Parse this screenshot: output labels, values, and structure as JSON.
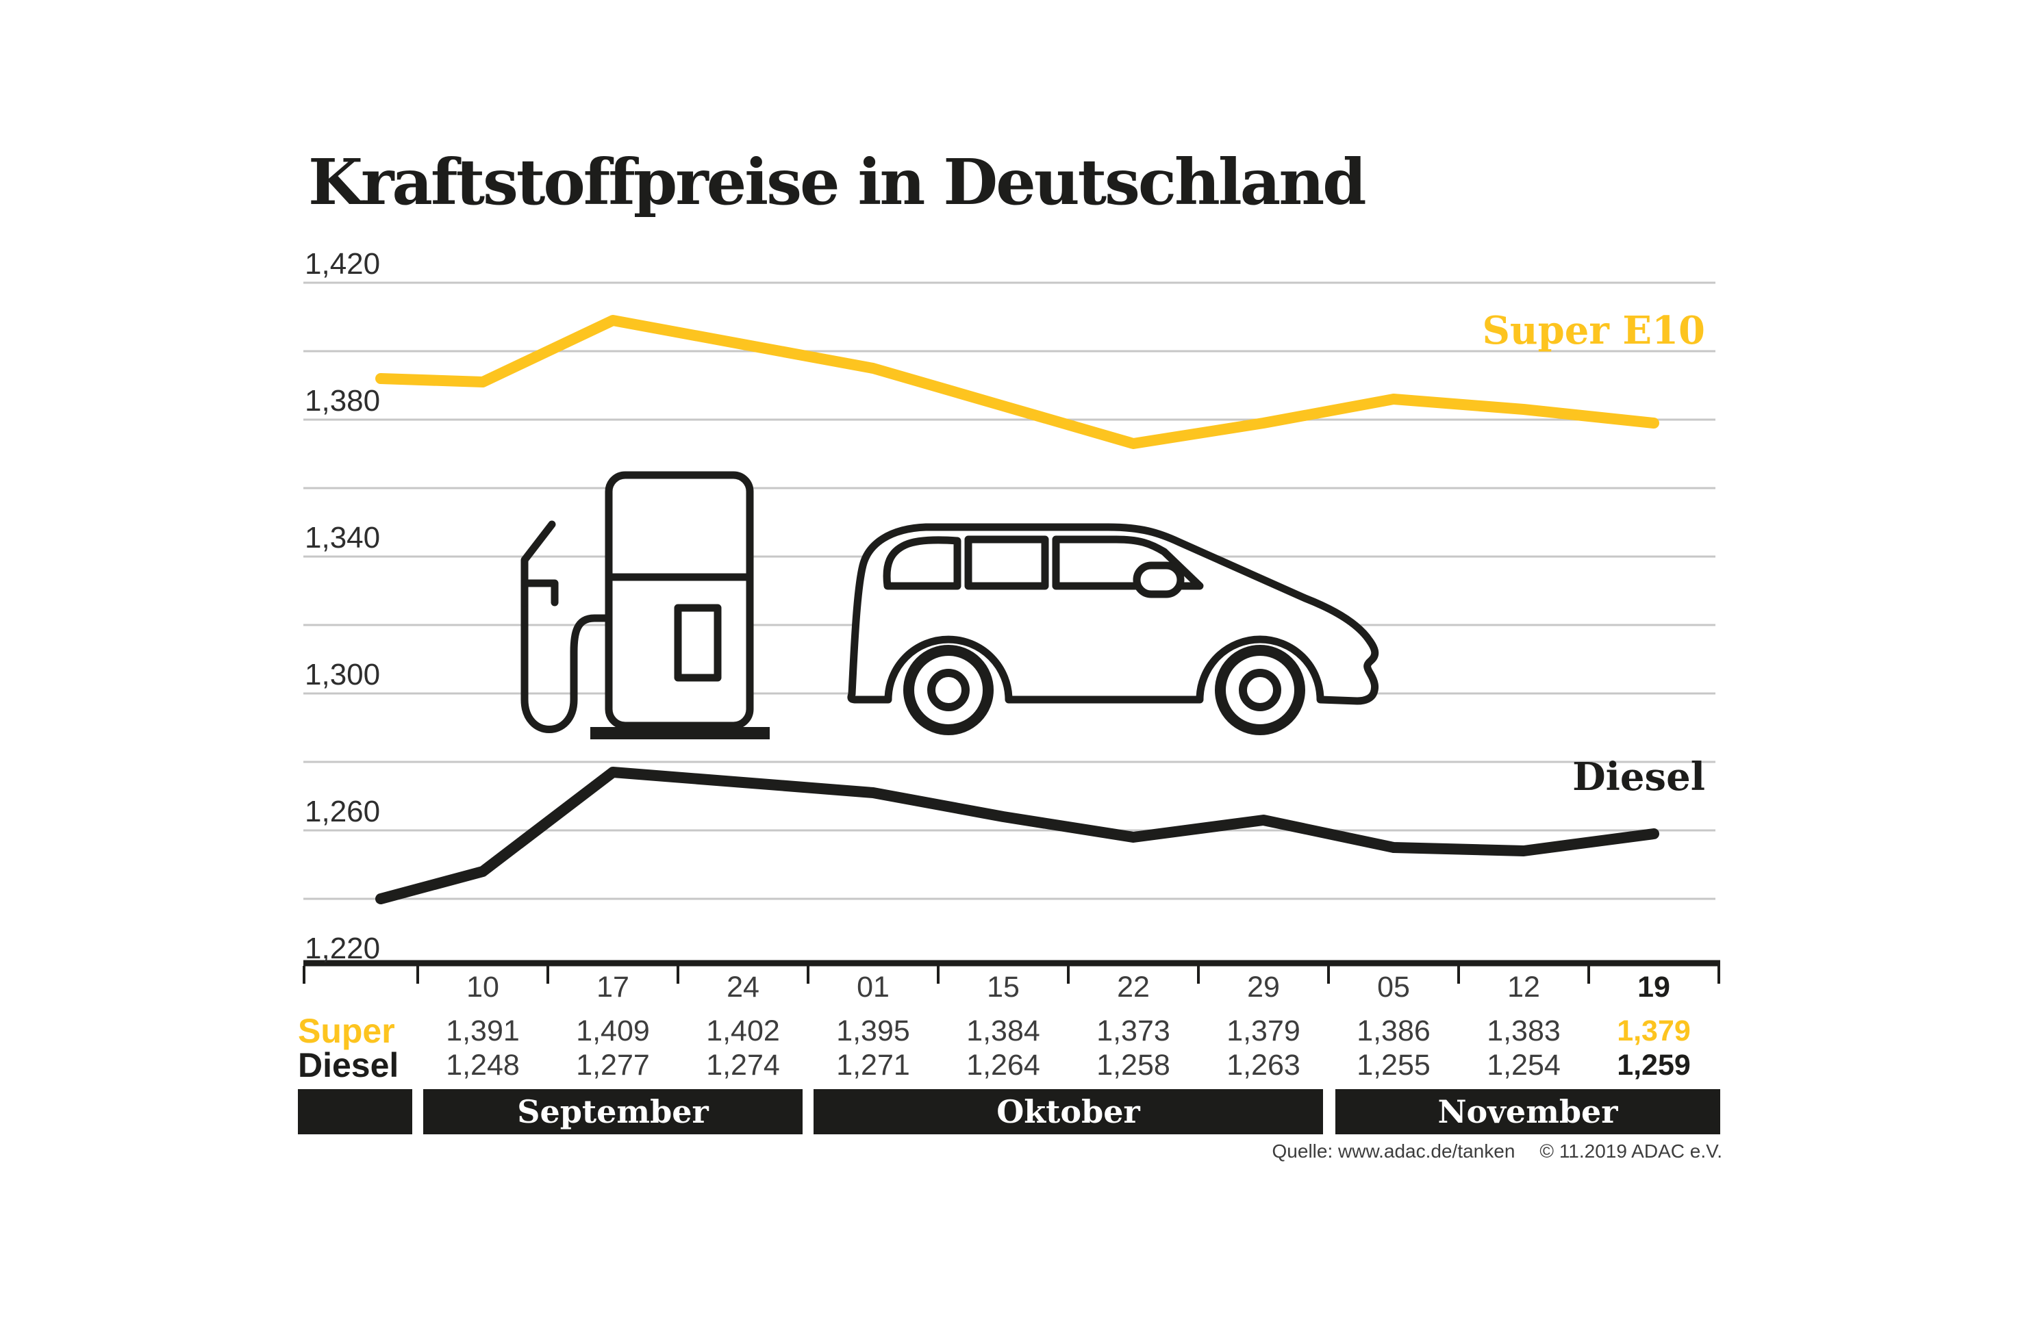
{
  "title": "Kraftstoffpreise in Deutschland",
  "chart_data": {
    "type": "line",
    "title": "Kraftstoffpreise in Deutschland",
    "categories": [
      "10",
      "17",
      "24",
      "01",
      "15",
      "22",
      "29",
      "05",
      "12",
      "19"
    ],
    "month_groups": [
      {
        "label": "September",
        "first_index": 0,
        "last_index": 2
      },
      {
        "label": "Oktober",
        "first_index": 3,
        "last_index": 6
      },
      {
        "label": "November",
        "first_index": 7,
        "last_index": 9
      }
    ],
    "series": [
      {
        "name": "Super E10",
        "color": "#fdc41f",
        "lead_in_value": 1.392,
        "values": [
          1.391,
          1.409,
          1.402,
          1.395,
          1.384,
          1.373,
          1.379,
          1.386,
          1.383,
          1.379
        ]
      },
      {
        "name": "Diesel",
        "color": "#1d1d1b",
        "lead_in_value": 1.24,
        "values": [
          1.248,
          1.277,
          1.274,
          1.271,
          1.264,
          1.258,
          1.263,
          1.255,
          1.254,
          1.259
        ]
      }
    ],
    "ylim": [
      1.22,
      1.42
    ],
    "grid_step": 0.02,
    "y_tick_labels": [
      "1,420",
      "1,380",
      "1,340",
      "1,300",
      "1,260",
      "1,220"
    ],
    "grid": true,
    "legend_position": "right-inline"
  },
  "legend": {
    "super": "Super E10",
    "diesel": "Diesel"
  },
  "table": {
    "row_labels": {
      "super": "Super",
      "diesel": "Diesel"
    },
    "dates": [
      "10",
      "17",
      "24",
      "01",
      "15",
      "22",
      "29",
      "05",
      "12",
      "19"
    ],
    "super_values": [
      "1,391",
      "1,409",
      "1,402",
      "1,395",
      "1,384",
      "1,373",
      "1,379",
      "1,386",
      "1,383",
      "1,379"
    ],
    "diesel_values": [
      "1,248",
      "1,277",
      "1,274",
      "1,271",
      "1,264",
      "1,258",
      "1,263",
      "1,255",
      "1,254",
      "1,259"
    ]
  },
  "months": {
    "september": "September",
    "oktober": "Oktober",
    "november": "November"
  },
  "source": {
    "left": "Quelle: www.adac.de/tanken",
    "right": "© 11.2019  ADAC e.V."
  },
  "colors": {
    "accent_yellow": "#fdc41f",
    "ink": "#1d1d1b",
    "grid": "#c7c7c7",
    "muted_text": "#3d3d3d",
    "bar_background": "#1c1c1a"
  }
}
